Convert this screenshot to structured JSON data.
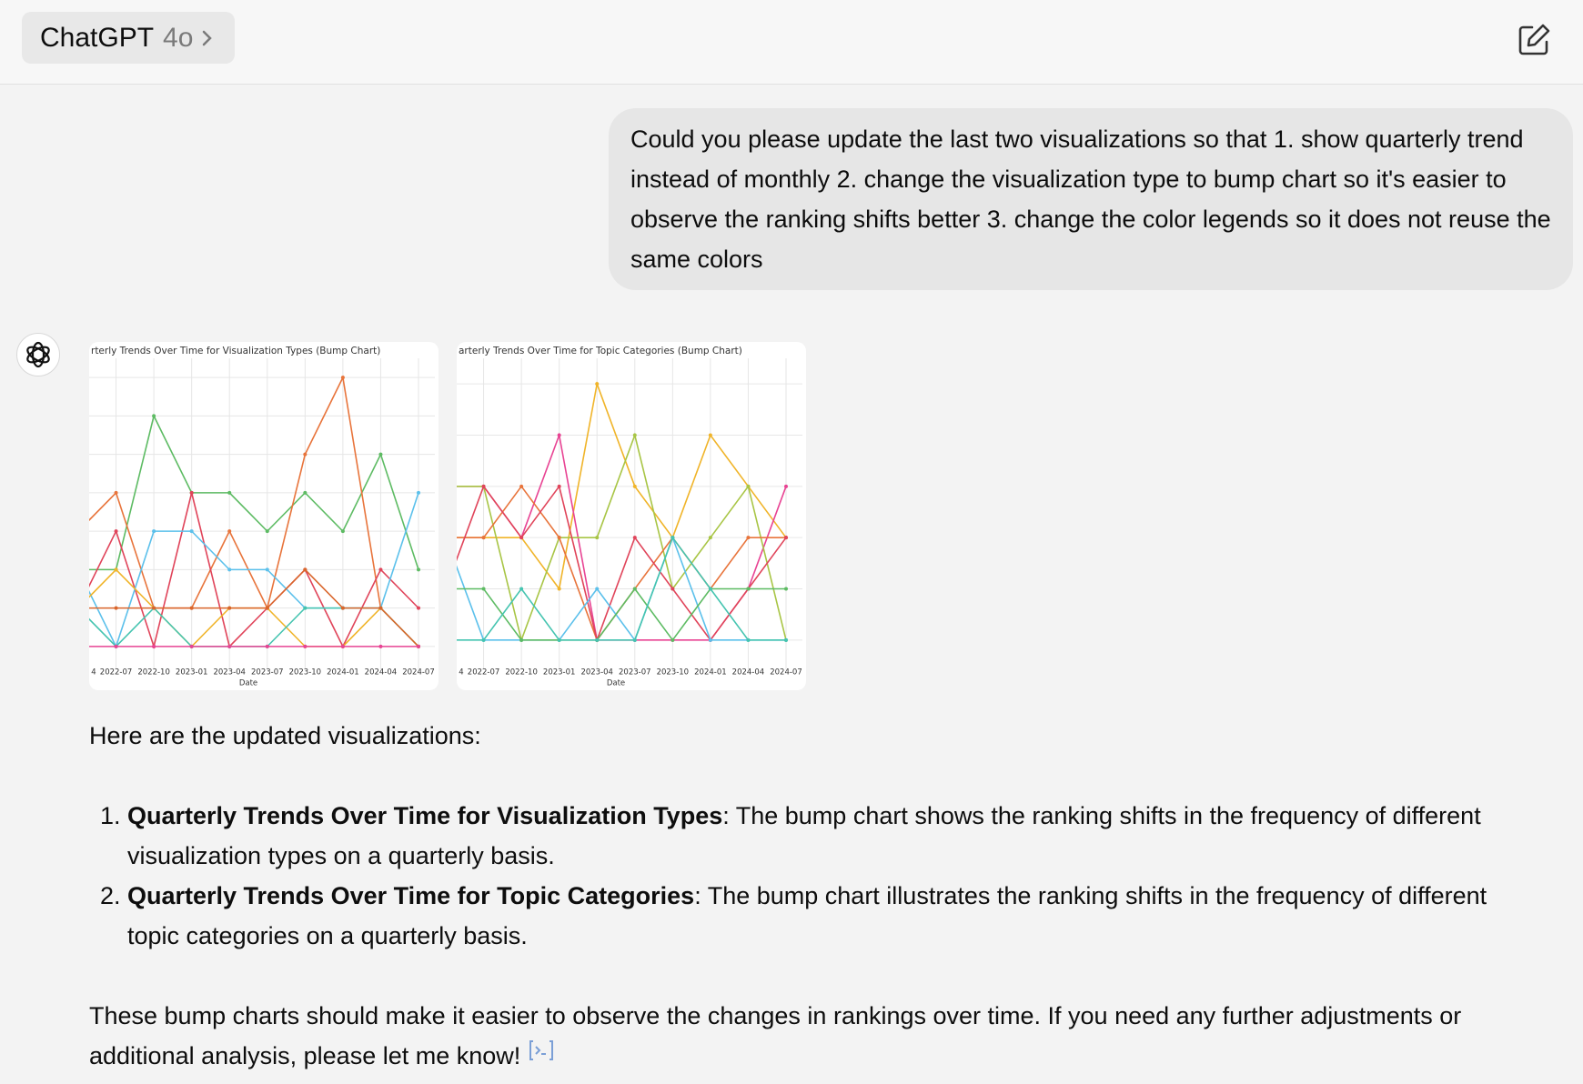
{
  "header": {
    "model_name": "ChatGPT",
    "model_version": "4o"
  },
  "user_message": "Could you please update the last two visualizations so that 1. show quarterly trend instead of monthly 2. change the visualization type to bump chart so it's easier to observe the ranking shifts better 3. change the color legends so it does not reuse the same colors",
  "chart_data": [
    {
      "type": "line",
      "title": "rterly Trends Over Time for Visualization Types (Bump Chart)",
      "x_label": "Date",
      "categories": [
        "4",
        "2022-07",
        "2022-10",
        "2023-01",
        "2023-04",
        "2023-07",
        "2023-10",
        "2024-01",
        "2024-04",
        "2024-07"
      ],
      "ylim": [
        -0.5,
        7.5
      ],
      "grid": true,
      "series": [
        {
          "color": "#5dbb63",
          "values": [
            2,
            2,
            6,
            4,
            4,
            3,
            4,
            3,
            5,
            2
          ]
        },
        {
          "color": "#e8743b",
          "values": [
            3,
            4,
            1,
            1,
            3,
            1,
            5,
            7,
            1,
            0
          ]
        },
        {
          "color": "#e0445a",
          "values": [
            1,
            3,
            0,
            4,
            0,
            1,
            2,
            0,
            2,
            1
          ]
        },
        {
          "color": "#5bc0eb",
          "values": [
            2,
            0,
            3,
            3,
            2,
            2,
            1,
            1,
            1,
            4
          ]
        },
        {
          "color": "#f0b429",
          "values": [
            1,
            2,
            1,
            0,
            1,
            1,
            0,
            0,
            1,
            0
          ]
        },
        {
          "color": "#45c4b0",
          "values": [
            1,
            0,
            1,
            0,
            0,
            0,
            1,
            1,
            1,
            0
          ]
        },
        {
          "color": "#d9652b",
          "values": [
            1,
            1,
            1,
            1,
            1,
            1,
            2,
            1,
            1,
            0
          ]
        },
        {
          "color": "#e84393",
          "values": [
            0,
            0,
            0,
            0,
            0,
            0,
            0,
            0,
            0,
            0
          ]
        }
      ]
    },
    {
      "type": "line",
      "title": "arterly Trends Over Time for Topic Categories (Bump Chart)",
      "x_label": "Date",
      "categories": [
        "4",
        "2022-07",
        "2022-10",
        "2023-01",
        "2023-04",
        "2023-07",
        "2023-10",
        "2024-01",
        "2024-04",
        "2024-07"
      ],
      "ylim": [
        -0.5,
        5.5
      ],
      "grid": true,
      "series": [
        {
          "color": "#f0b429",
          "values": [
            2,
            2,
            2,
            1,
            5,
            3,
            2,
            4,
            3,
            2
          ]
        },
        {
          "color": "#e84393",
          "values": [
            3,
            3,
            2,
            4,
            0,
            0,
            0,
            0,
            1,
            3
          ]
        },
        {
          "color": "#a8c545",
          "values": [
            3,
            3,
            0,
            2,
            2,
            4,
            1,
            2,
            3,
            0
          ]
        },
        {
          "color": "#e8743b",
          "values": [
            2,
            2,
            3,
            2,
            0,
            1,
            2,
            1,
            2,
            2
          ]
        },
        {
          "color": "#e0445a",
          "values": [
            1,
            3,
            2,
            3,
            0,
            2,
            1,
            0,
            1,
            2
          ]
        },
        {
          "color": "#5bc0eb",
          "values": [
            2,
            0,
            0,
            0,
            1,
            0,
            2,
            0,
            0,
            0
          ]
        },
        {
          "color": "#5dbb63",
          "values": [
            1,
            1,
            0,
            0,
            0,
            1,
            0,
            1,
            1,
            1
          ]
        },
        {
          "color": "#45c4b0",
          "values": [
            0,
            0,
            1,
            0,
            0,
            0,
            2,
            1,
            0,
            0
          ]
        }
      ]
    }
  ],
  "response": {
    "intro": "Here are the updated visualizations:",
    "items": [
      {
        "title": "Quarterly Trends Over Time for Visualization Types",
        "text": ": The bump chart shows the ranking shifts in the frequency of different visualization types on a quarterly basis."
      },
      {
        "title": "Quarterly Trends Over Time for Topic Categories",
        "text": ": The bump chart illustrates the ranking shifts in the frequency of different topic categories on a quarterly basis."
      }
    ],
    "closing": "These bump charts should make it easier to observe the changes in rankings over time. If you need any further adjustments or additional analysis, please let me know!"
  }
}
